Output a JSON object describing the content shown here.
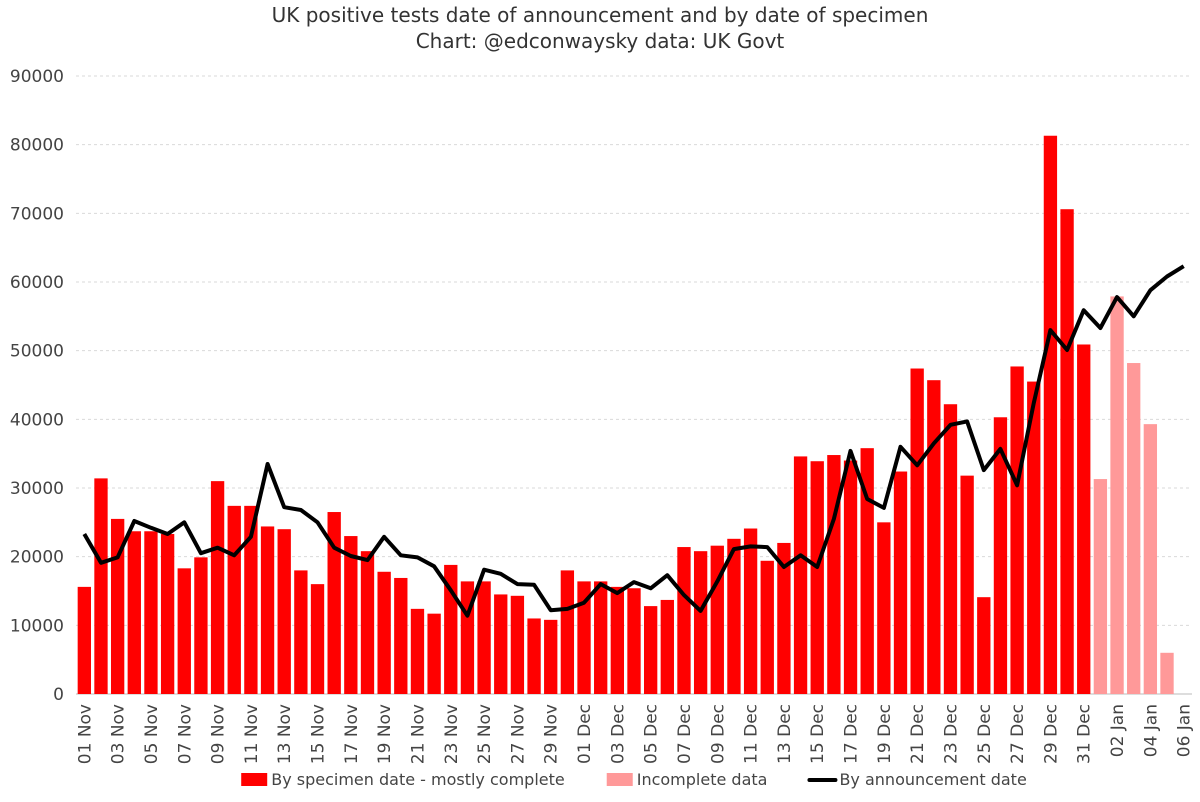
{
  "chart_data": {
    "type": "bar",
    "title": "UK positive tests date of announcement and by date of specimen",
    "subtitle": "Chart: @edconwaysky data: UK Govt",
    "categories": [
      "01 Nov",
      null,
      "03 Nov",
      null,
      "05 Nov",
      null,
      "07 Nov",
      null,
      "09 Nov",
      null,
      "11 Nov",
      null,
      "13 Nov",
      null,
      "15 Nov",
      null,
      "17 Nov",
      null,
      "19 Nov",
      null,
      "21 Nov",
      null,
      "23 Nov",
      null,
      "25 Nov",
      null,
      "27 Nov",
      null,
      "29 Nov",
      null,
      "01 Dec",
      null,
      "03 Dec",
      null,
      "05 Dec",
      null,
      "07 Dec",
      null,
      "09 Dec",
      null,
      "11 Dec",
      null,
      "13 Dec",
      null,
      "15 Dec",
      null,
      "17 Dec",
      null,
      "19 Dec",
      null,
      "21 Dec",
      null,
      "23 Dec",
      null,
      "25 Dec",
      null,
      "27 Dec",
      null,
      "29 Dec",
      null,
      "31 Dec",
      null,
      "02 Jan",
      null,
      "04 Jan",
      null,
      "06 Jan"
    ],
    "series": [
      {
        "name": "By specimen date - mostly complete",
        "color": "#ff0000",
        "kind": "bar",
        "values": [
          15600,
          31400,
          25500,
          23700,
          23700,
          23300,
          18300,
          19900,
          31000,
          27400,
          27400,
          24400,
          24000,
          18000,
          16000,
          26500,
          23000,
          20800,
          17800,
          16900,
          12400,
          11700,
          18800,
          16400,
          16400,
          14500,
          14300,
          11000,
          10800,
          18000,
          16400,
          16400,
          15600,
          15400,
          12800,
          13700,
          21400,
          20800,
          21600,
          22600,
          24100,
          19400,
          22000,
          34600,
          33900,
          34800,
          34000,
          35800,
          25000,
          32400,
          47400,
          45700,
          42200,
          31800,
          14100,
          40300,
          47700,
          45500,
          81300,
          70600,
          50900,
          null,
          null,
          null,
          null,
          null,
          null
        ]
      },
      {
        "name": "Incomplete data",
        "color": "#ff9999",
        "kind": "bar",
        "values": [
          null,
          null,
          null,
          null,
          null,
          null,
          null,
          null,
          null,
          null,
          null,
          null,
          null,
          null,
          null,
          null,
          null,
          null,
          null,
          null,
          null,
          null,
          null,
          null,
          null,
          null,
          null,
          null,
          null,
          null,
          null,
          null,
          null,
          null,
          null,
          null,
          null,
          null,
          null,
          null,
          null,
          null,
          null,
          null,
          null,
          null,
          null,
          null,
          null,
          null,
          null,
          null,
          null,
          null,
          null,
          null,
          null,
          null,
          null,
          null,
          null,
          31300,
          57900,
          48200,
          39300,
          6000,
          null
        ]
      },
      {
        "name": "By announcement date",
        "color": "#000000",
        "kind": "line",
        "values": [
          23300,
          19100,
          19900,
          25200,
          24200,
          23300,
          25000,
          20500,
          21300,
          20200,
          22900,
          33500,
          27200,
          26800,
          25000,
          21300,
          20100,
          19500,
          22900,
          20200,
          19900,
          18600,
          15100,
          11400,
          18100,
          17500,
          16000,
          15900,
          12200,
          12400,
          13300,
          16000,
          14700,
          16300,
          15400,
          17300,
          14400,
          12100,
          16400,
          21100,
          21500,
          21400,
          18500,
          20200,
          18500,
          25500,
          35400,
          28400,
          27100,
          36000,
          33300,
          36500,
          39200,
          39700,
          32600,
          35700,
          30400,
          42400,
          53000,
          50100,
          55900,
          53300,
          57800,
          55000,
          58800,
          60800,
          62300
        ]
      }
    ],
    "ylim": [
      0,
      90000
    ],
    "yticks": [
      0,
      10000,
      20000,
      30000,
      40000,
      50000,
      60000,
      70000,
      80000,
      90000
    ],
    "grid": true,
    "legend": "bottom"
  }
}
